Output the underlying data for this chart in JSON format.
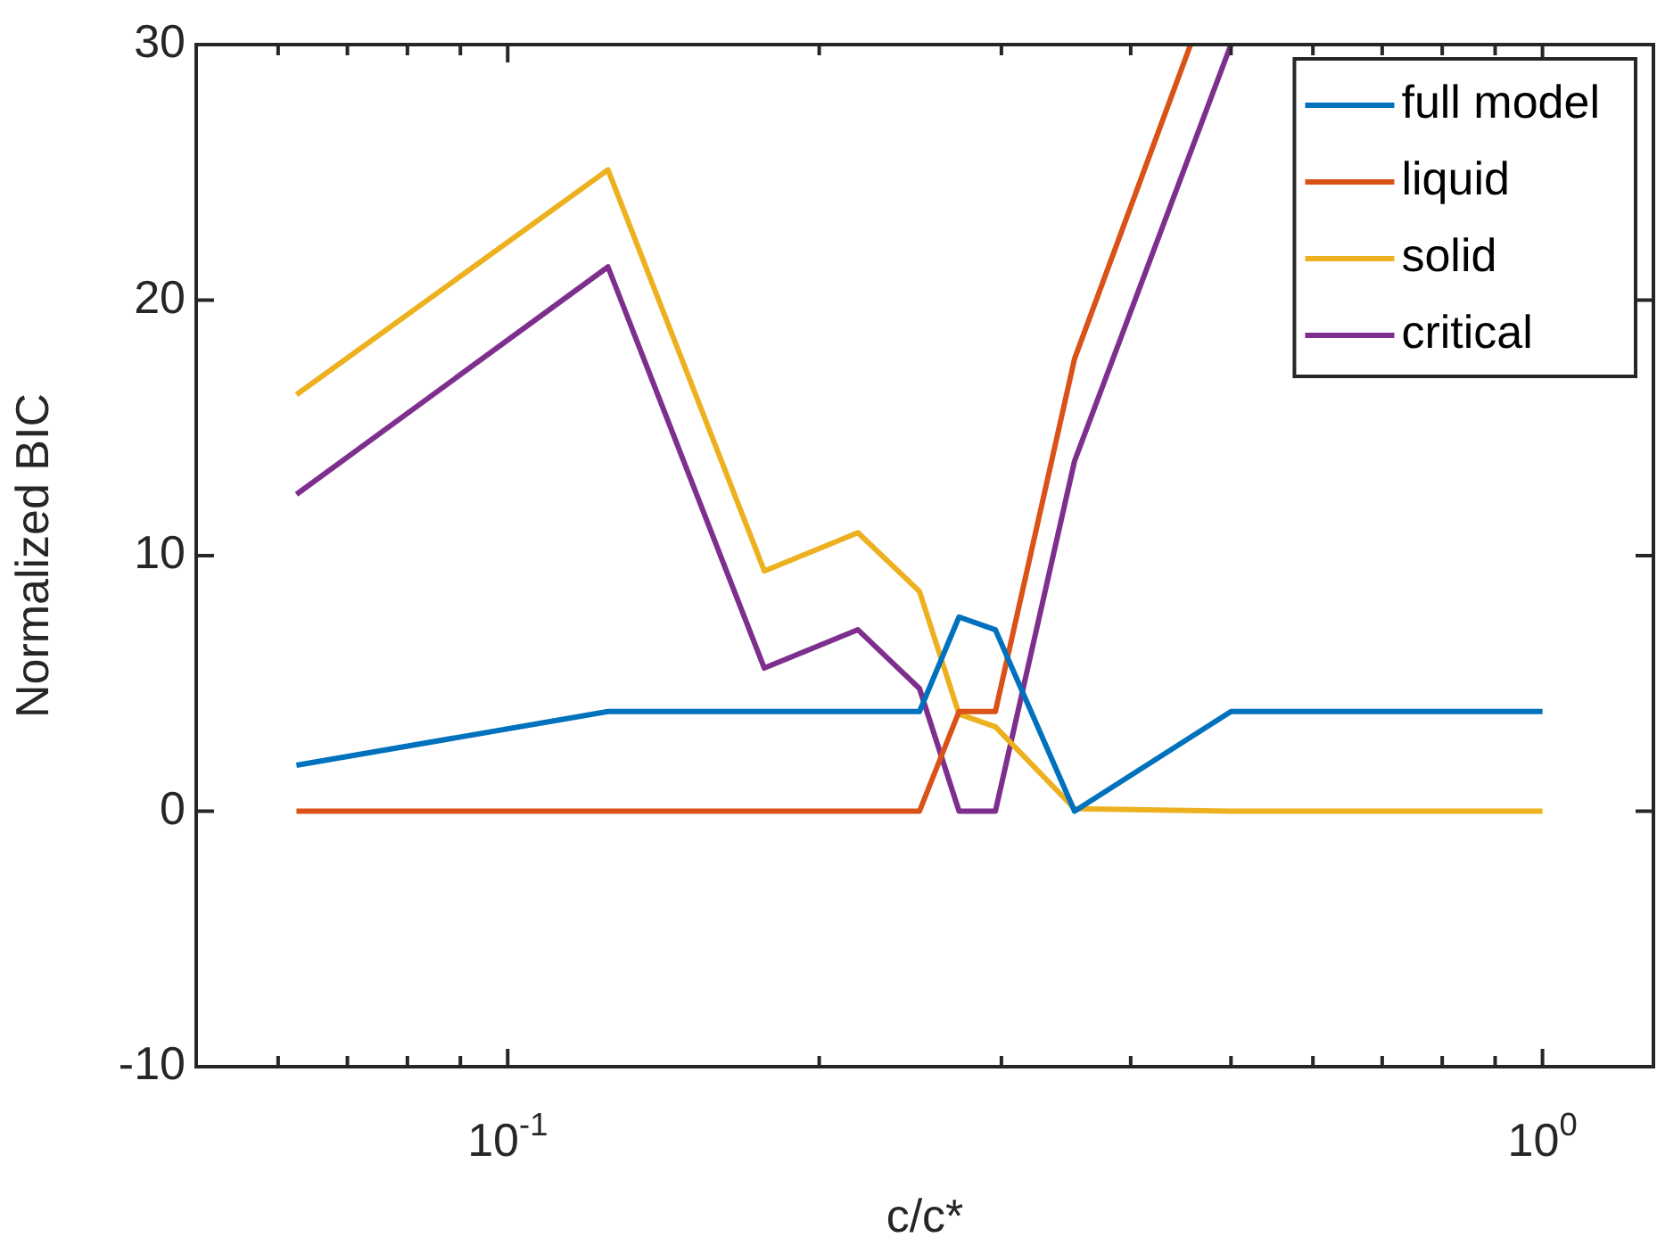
{
  "chart_data": {
    "type": "line",
    "xlabel": "c/c*",
    "ylabel": "Normalized BIC",
    "x": [
      0.0625,
      0.125,
      0.177,
      0.218,
      0.25,
      0.273,
      0.296,
      0.353,
      0.5,
      1
    ],
    "series": [
      {
        "name": "full model",
        "color": "#0072bd",
        "values": [
          1.8,
          3.9,
          3.9,
          3.9,
          3.9,
          7.6,
          7.1,
          0,
          3.9,
          3.9
        ]
      },
      {
        "name": "liquid",
        "color": "#d95319",
        "x": [
          0.0625,
          0.125,
          0.177,
          0.218,
          0.25,
          0.273,
          0.296,
          0.353,
          0.457
        ],
        "values": [
          0,
          0,
          0,
          0,
          0,
          3.9,
          3.9,
          17.7,
          30
        ]
      },
      {
        "name": "solid",
        "color": "#edb120",
        "values": [
          16.3,
          25.1,
          9.4,
          10.9,
          8.6,
          3.8,
          3.3,
          0.1,
          0,
          0
        ]
      },
      {
        "name": "critical",
        "color": "#7e2f8e",
        "values": [
          12.4,
          21.3,
          5.6,
          7.1,
          4.8,
          0,
          0,
          13.7,
          30,
          null
        ]
      }
    ],
    "log": "x",
    "xlim": [
      0.05,
      1.28
    ],
    "xticks": [
      {
        "value": 0.06,
        "label": null
      },
      {
        "value": 0.07,
        "label": null
      },
      {
        "value": 0.08,
        "label": null
      },
      {
        "value": 0.09,
        "label": null
      },
      {
        "value": 0.1,
        "label": "10$^{-1}$"
      },
      {
        "value": 0.2,
        "label": null
      },
      {
        "value": 0.3,
        "label": null
      },
      {
        "value": 0.4,
        "label": null
      },
      {
        "value": 0.5,
        "label": null
      },
      {
        "value": 0.6,
        "label": null
      },
      {
        "value": 0.7,
        "label": null
      },
      {
        "value": 0.8,
        "label": null
      },
      {
        "value": 0.9,
        "label": null
      },
      {
        "value": 1,
        "label": "10$^{0}$"
      }
    ],
    "ylim": [
      -10,
      30
    ],
    "yticks": [
      -10,
      0,
      10,
      20,
      30
    ],
    "grid": false,
    "legend": "top right",
    "marker": "none",
    "line_style": "solid"
  }
}
